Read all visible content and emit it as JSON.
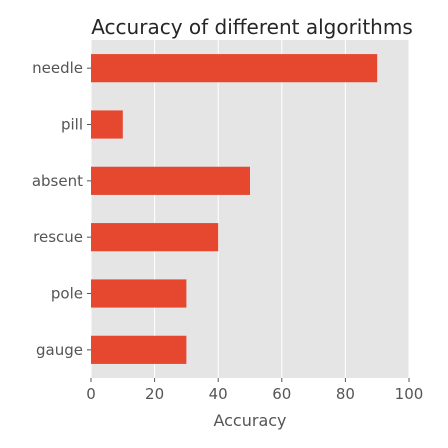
{
  "chart_data": {
    "type": "bar",
    "orientation": "horizontal",
    "title": "Accuracy of different algorithms",
    "xlabel": "Accuracy",
    "ylabel": "",
    "categories": [
      "gauge",
      "pole",
      "rescue",
      "absent",
      "pill",
      "needle"
    ],
    "values": [
      30,
      30,
      40,
      50,
      10,
      90
    ],
    "xlim": [
      0,
      100
    ],
    "xticks": [
      0,
      20,
      40,
      60,
      80,
      100
    ],
    "grid": true,
    "legend": "none",
    "colors": {
      "bar": "#e5472f",
      "plot_background": "#e5e5e5",
      "grid": "#ffffff",
      "tick_text": "#555555",
      "title_text": "#262626"
    }
  }
}
